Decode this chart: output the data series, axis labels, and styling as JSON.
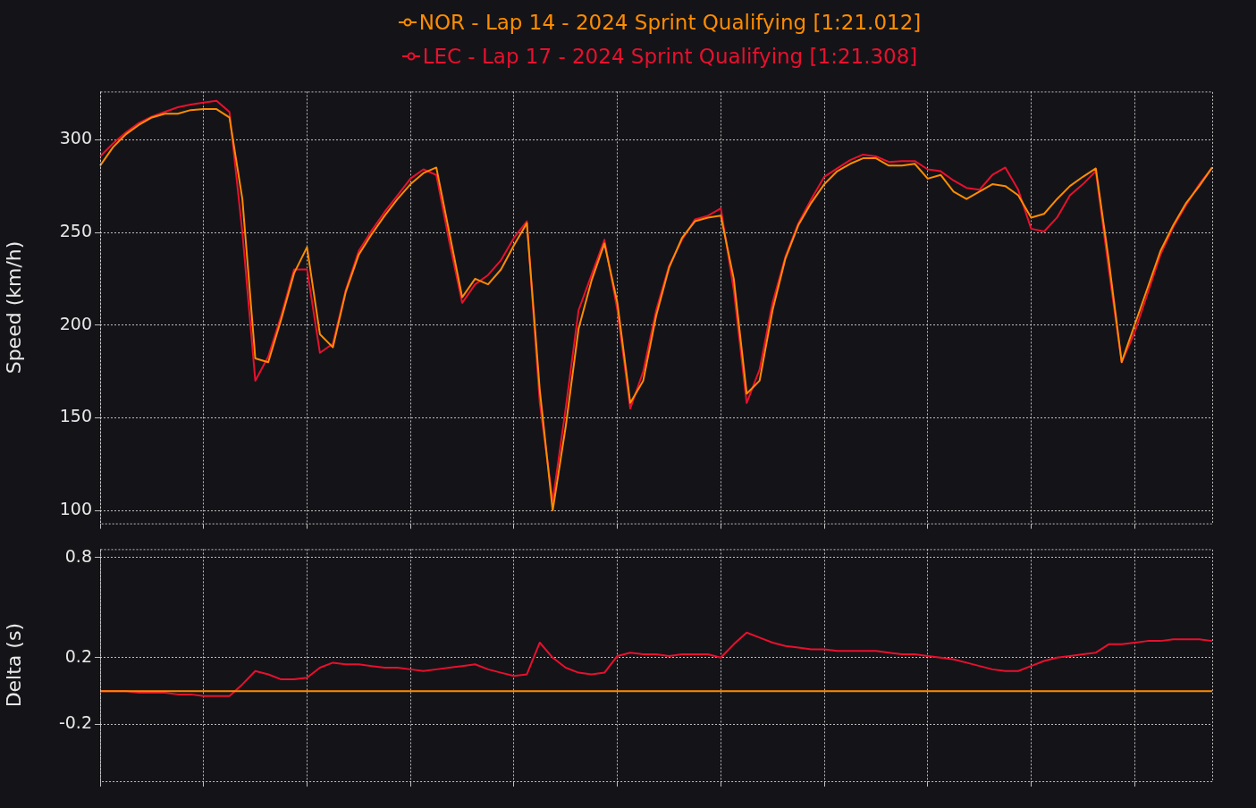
{
  "chart_data": [
    {
      "type": "line",
      "ylabel": "Speed (km/h)",
      "ylim": [
        93,
        326
      ],
      "yticks": [
        100,
        150,
        200,
        250,
        300
      ],
      "grid": true,
      "legend": "top",
      "marker": "none",
      "categories": [
        null,
        null,
        null,
        null,
        null,
        null,
        null,
        null,
        null,
        null,
        null,
        null,
        null,
        null,
        null,
        null,
        null,
        null,
        null,
        null,
        null,
        null,
        null,
        null,
        null,
        null,
        null,
        null,
        null,
        null,
        null,
        null,
        null,
        null,
        null,
        null,
        null,
        null,
        null,
        null,
        null,
        null,
        null,
        null,
        null,
        null,
        null,
        null,
        null,
        null,
        null,
        null,
        null,
        null,
        null,
        null,
        null,
        null,
        null,
        null,
        null,
        null,
        null,
        null,
        null,
        null,
        null,
        null,
        null,
        null,
        null,
        null,
        null,
        null,
        null,
        null,
        null,
        null,
        null,
        null,
        null,
        null,
        null,
        null,
        null,
        null,
        null
      ],
      "series": [
        {
          "name": "NOR - Lap 14 - 2024 Sprint Qualifying [1:21.012]",
          "color": "#ff8c00",
          "values": [
            286,
            296,
            303,
            308,
            312,
            314,
            314,
            316,
            316.5,
            316.5,
            312,
            268,
            182,
            180,
            203,
            228,
            242,
            195,
            188,
            218,
            238,
            249,
            259,
            268,
            276,
            282,
            285,
            250,
            215,
            225,
            222,
            230,
            243,
            255,
            165,
            100,
            145,
            198,
            224,
            244,
            212,
            158,
            170,
            205,
            231,
            247,
            256,
            258,
            259,
            225,
            163,
            170,
            208,
            236,
            254,
            266,
            276,
            283,
            287,
            290,
            290,
            286,
            286,
            287,
            279,
            281,
            272,
            268,
            272,
            276,
            275,
            270,
            258,
            260,
            268,
            275,
            280,
            284.5,
            235,
            180,
            200,
            220,
            240,
            254,
            266,
            275,
            285
          ]
        },
        {
          "name": "LEC - Lap 17 - 2024 Sprint Qualifying [1:21.308]",
          "color": "#e8102e",
          "values": [
            291,
            298,
            304,
            309,
            312.5,
            315,
            317.5,
            319,
            320,
            321,
            315,
            250,
            170,
            183,
            205,
            230,
            230,
            185,
            190,
            219,
            240,
            251,
            261,
            270,
            279,
            284,
            281,
            245,
            212,
            222,
            227,
            235,
            247,
            256,
            158,
            105,
            155,
            208,
            227,
            246,
            208,
            155,
            175,
            208,
            232,
            246,
            257,
            259,
            263,
            219,
            158,
            176,
            212,
            237,
            255,
            268,
            280,
            284.5,
            289,
            292,
            291,
            288,
            288.5,
            288.5,
            284,
            283,
            278,
            274,
            273,
            281,
            285,
            273,
            252,
            250.5,
            258,
            270,
            276,
            283,
            230,
            180,
            196,
            217,
            238,
            253,
            265,
            276,
            285
          ]
        }
      ]
    },
    {
      "type": "line",
      "ylabel": "Delta (s)",
      "ylim": [
        -0.54,
        0.85
      ],
      "yticks": [
        -0.2,
        0.2,
        0.8
      ],
      "grid": true,
      "marker": "none",
      "categories": [
        null,
        null,
        null,
        null,
        null,
        null,
        null,
        null,
        null,
        null,
        null,
        null,
        null,
        null,
        null,
        null,
        null,
        null,
        null,
        null,
        null,
        null,
        null,
        null,
        null,
        null,
        null,
        null,
        null,
        null,
        null,
        null,
        null,
        null,
        null,
        null,
        null,
        null,
        null,
        null,
        null,
        null,
        null,
        null,
        null,
        null,
        null,
        null,
        null,
        null,
        null,
        null,
        null,
        null,
        null,
        null,
        null,
        null,
        null,
        null,
        null,
        null,
        null,
        null,
        null,
        null,
        null,
        null,
        null,
        null,
        null,
        null,
        null,
        null,
        null,
        null,
        null,
        null,
        null,
        null,
        null,
        null,
        null,
        null,
        null,
        null,
        null
      ],
      "series": [
        {
          "color": "#ff8c00",
          "values": [
            0,
            0,
            0,
            0,
            0,
            0,
            0,
            0,
            0,
            0,
            0,
            0,
            0,
            0,
            0,
            0,
            0,
            0,
            0,
            0,
            0,
            0,
            0,
            0,
            0,
            0,
            0,
            0,
            0,
            0,
            0,
            0,
            0,
            0,
            0,
            0,
            0,
            0,
            0,
            0,
            0,
            0,
            0,
            0,
            0,
            0,
            0,
            0,
            0,
            0,
            0,
            0,
            0,
            0,
            0,
            0,
            0,
            0,
            0,
            0,
            0,
            0,
            0,
            0,
            0,
            0,
            0,
            0,
            0,
            0,
            0,
            0,
            0,
            0,
            0,
            0,
            0,
            0,
            0,
            0,
            0,
            0,
            0,
            0,
            0,
            0,
            0
          ]
        },
        {
          "color": "#e8102e",
          "values": [
            0,
            0,
            0,
            -0.01,
            -0.01,
            -0.01,
            -0.02,
            -0.02,
            -0.03,
            -0.03,
            -0.03,
            0.04,
            0.12,
            0.1,
            0.07,
            0.07,
            0.08,
            0.14,
            0.17,
            0.16,
            0.16,
            0.15,
            0.14,
            0.14,
            0.13,
            0.12,
            0.13,
            0.14,
            0.15,
            0.16,
            0.13,
            0.11,
            0.09,
            0.1,
            0.29,
            0.2,
            0.14,
            0.11,
            0.1,
            0.11,
            0.21,
            0.23,
            0.22,
            0.22,
            0.21,
            0.22,
            0.22,
            0.22,
            0.2,
            0.28,
            0.35,
            0.32,
            0.29,
            0.27,
            0.26,
            0.25,
            0.25,
            0.24,
            0.24,
            0.24,
            0.24,
            0.23,
            0.22,
            0.22,
            0.21,
            0.2,
            0.19,
            0.17,
            0.15,
            0.13,
            0.12,
            0.12,
            0.15,
            0.18,
            0.2,
            0.21,
            0.22,
            0.23,
            0.28,
            0.28,
            0.29,
            0.3,
            0.3,
            0.31,
            0.31,
            0.31,
            0.3
          ]
        }
      ]
    }
  ]
}
